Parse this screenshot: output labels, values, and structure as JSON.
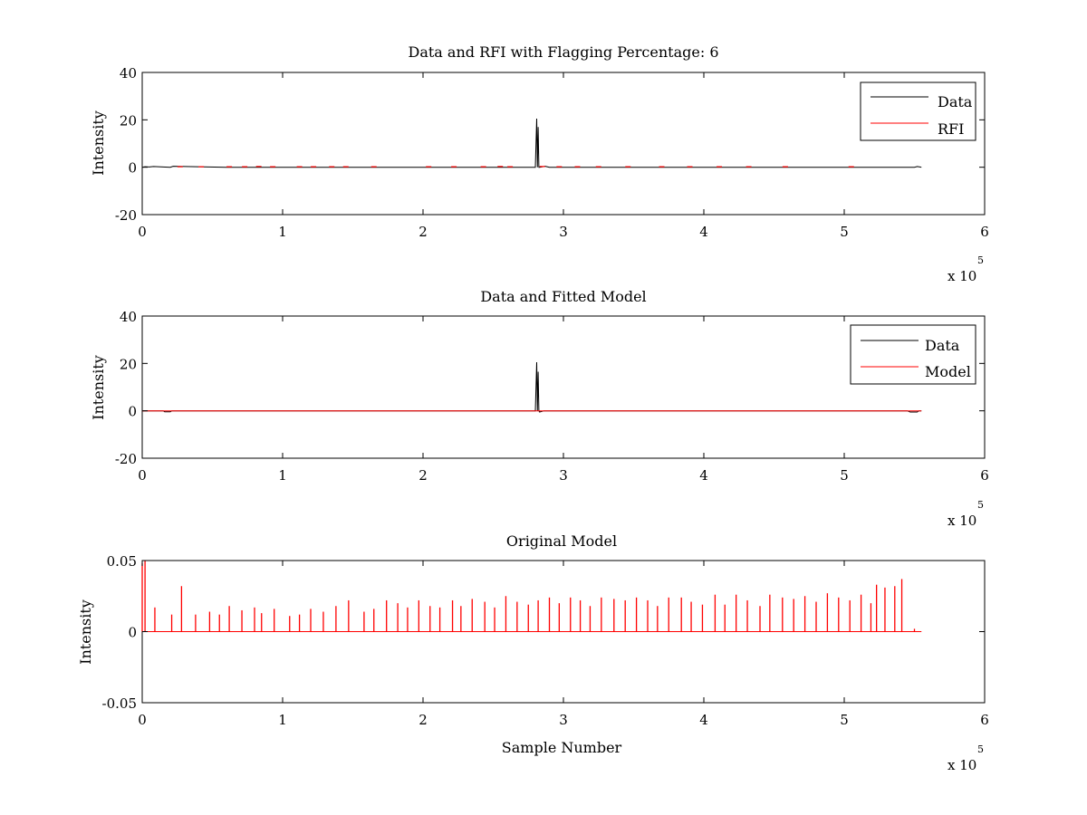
{
  "chart_data": [
    {
      "type": "line",
      "title": "Data and RFI with Flagging Percentage: 6",
      "xlabel": "",
      "ylabel": "Intensity",
      "xlim": [
        0,
        6
      ],
      "ylim": [
        -20,
        40
      ],
      "x_ticks": [
        "0",
        "1",
        "2",
        "3",
        "4",
        "5",
        "6"
      ],
      "y_ticks": [
        "-20",
        "0",
        "20",
        "40"
      ],
      "x_multiplier_base": "x 10",
      "x_multiplier_exp": "5",
      "legend": {
        "position": "top-right",
        "entries": [
          "Data",
          "RFI"
        ]
      },
      "series": [
        {
          "name": "Data",
          "color": "#000000",
          "x": [
            0.0,
            0.02,
            0.05,
            0.08,
            0.2,
            0.22,
            0.6,
            1.0,
            1.5,
            2.0,
            2.5,
            2.8,
            2.81,
            2.815,
            2.82,
            2.825,
            2.83,
            2.87,
            2.9,
            3.5,
            4.0,
            4.5,
            5.0,
            5.5,
            5.52,
            5.55
          ],
          "y": [
            0.0,
            0.2,
            0.1,
            0.3,
            0.0,
            0.4,
            0.0,
            0.0,
            0.0,
            0.0,
            0.0,
            0.0,
            20.5,
            0.0,
            17.0,
            0.0,
            0.0,
            0.4,
            0.0,
            0.0,
            0.0,
            0.0,
            0.0,
            0.0,
            0.3,
            0.0
          ]
        },
        {
          "name": "RFI",
          "color": "#ff0000",
          "x": [
            0.27,
            0.42,
            0.62,
            0.73,
            0.83,
            0.93,
            1.12,
            1.22,
            1.35,
            1.45,
            1.65,
            2.04,
            2.22,
            2.43,
            2.55,
            2.62,
            2.85,
            2.97,
            3.1,
            3.25,
            3.46,
            3.7,
            3.9,
            4.11,
            4.32,
            4.58,
            5.05
          ],
          "y": [
            0.2,
            0.2,
            0.2,
            0.2,
            0.3,
            0.2,
            0.2,
            0.2,
            0.2,
            0.2,
            0.2,
            0.2,
            0.2,
            0.2,
            0.3,
            0.2,
            0.3,
            0.2,
            0.2,
            0.2,
            0.2,
            0.2,
            0.2,
            0.2,
            0.2,
            0.2,
            0.2
          ]
        }
      ]
    },
    {
      "type": "line",
      "title": "Data and Fitted Model",
      "xlabel": "",
      "ylabel": "Intensity",
      "xlim": [
        0,
        6
      ],
      "ylim": [
        -20,
        40
      ],
      "x_ticks": [
        "0",
        "1",
        "2",
        "3",
        "4",
        "5",
        "6"
      ],
      "y_ticks": [
        "-20",
        "0",
        "20",
        "40"
      ],
      "x_multiplier_base": "x 10",
      "x_multiplier_exp": "5",
      "legend": {
        "position": "top-right",
        "entries": [
          "Data",
          "Model"
        ]
      },
      "series": [
        {
          "name": "Data",
          "color": "#000000",
          "x": [
            0.0,
            0.15,
            0.16,
            0.2,
            0.21,
            1.0,
            2.0,
            2.8,
            2.81,
            2.815,
            2.82,
            2.825,
            2.83,
            2.86,
            3.5,
            4.5,
            5.45,
            5.47,
            5.52,
            5.53,
            5.55
          ],
          "y": [
            0.0,
            0.0,
            -0.4,
            -0.4,
            0.0,
            0.0,
            0.0,
            0.0,
            20.5,
            0.0,
            16.5,
            0.0,
            -0.5,
            0.0,
            0.0,
            0.0,
            0.0,
            -0.5,
            -0.5,
            0.0,
            0.0
          ]
        },
        {
          "name": "Model",
          "color": "#ff0000",
          "x": [
            0.0,
            5.55
          ],
          "y": [
            0.0,
            0.0
          ]
        }
      ]
    },
    {
      "type": "line",
      "title": "Original Model",
      "xlabel": "Sample Number",
      "ylabel": "Intensity",
      "xlim": [
        0,
        6
      ],
      "ylim": [
        -0.05,
        0.05
      ],
      "x_ticks": [
        "0",
        "1",
        "2",
        "3",
        "4",
        "5",
        "6"
      ],
      "y_ticks": [
        "-0.05",
        "0",
        "0.05"
      ],
      "x_multiplier_base": "x 10",
      "x_multiplier_exp": "5",
      "legend": null,
      "series": [
        {
          "name": "",
          "color": "#ff0000",
          "x": [
            0.0,
            0.02,
            0.09,
            0.21,
            0.28,
            0.38,
            0.48,
            0.55,
            0.62,
            0.71,
            0.8,
            0.85,
            0.94,
            1.05,
            1.12,
            1.2,
            1.29,
            1.38,
            1.47,
            1.58,
            1.65,
            1.74,
            1.82,
            1.89,
            1.97,
            2.05,
            2.12,
            2.21,
            2.27,
            2.35,
            2.44,
            2.51,
            2.59,
            2.67,
            2.75,
            2.82,
            2.9,
            2.97,
            3.05,
            3.12,
            3.19,
            3.27,
            3.36,
            3.44,
            3.52,
            3.6,
            3.67,
            3.75,
            3.84,
            3.91,
            3.99,
            4.08,
            4.15,
            4.23,
            4.31,
            4.4,
            4.47,
            4.56,
            4.64,
            4.72,
            4.8,
            4.88,
            4.96,
            5.04,
            5.12,
            5.19,
            5.23,
            5.29,
            5.36,
            5.41,
            5.5
          ],
          "y": [
            0.048,
            0.05,
            0.017,
            0.012,
            0.032,
            0.012,
            0.014,
            0.012,
            0.018,
            0.015,
            0.017,
            0.013,
            0.016,
            0.011,
            0.012,
            0.016,
            0.014,
            0.018,
            0.022,
            0.014,
            0.016,
            0.022,
            0.02,
            0.017,
            0.022,
            0.018,
            0.017,
            0.022,
            0.018,
            0.023,
            0.021,
            0.017,
            0.025,
            0.021,
            0.019,
            0.022,
            0.024,
            0.02,
            0.024,
            0.022,
            0.018,
            0.024,
            0.023,
            0.022,
            0.024,
            0.022,
            0.018,
            0.024,
            0.024,
            0.021,
            0.019,
            0.026,
            0.019,
            0.026,
            0.022,
            0.018,
            0.026,
            0.024,
            0.023,
            0.025,
            0.021,
            0.027,
            0.024,
            0.022,
            0.026,
            0.02,
            0.033,
            0.031,
            0.032,
            0.037,
            0.002
          ]
        }
      ]
    }
  ]
}
